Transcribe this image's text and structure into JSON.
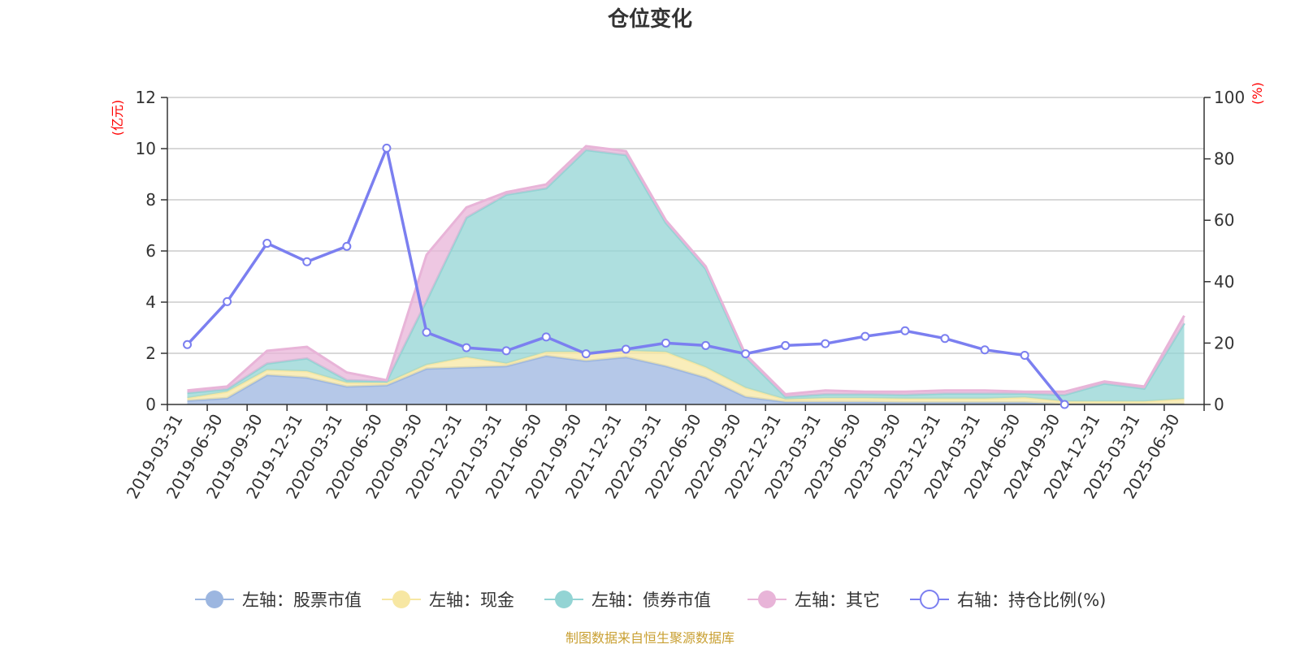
{
  "chart_data": {
    "type": "area",
    "title": "仓位变化",
    "y_left_unit": "(亿元)",
    "y_right_unit": "(%)",
    "categories": [
      "2019-03-31",
      "2019-06-30",
      "2019-09-30",
      "2019-12-31",
      "2020-03-31",
      "2020-06-30",
      "2020-09-30",
      "2020-12-31",
      "2021-03-31",
      "2021-06-30",
      "2021-09-30",
      "2021-12-31",
      "2022-03-31",
      "2022-06-30",
      "2022-09-30",
      "2022-12-31",
      "2023-03-31",
      "2023-06-30",
      "2023-09-30",
      "2023-12-31",
      "2024-03-31",
      "2024-06-30",
      "2024-09-30",
      "2024-12-31",
      "2025-03-31",
      "2025-06-30"
    ],
    "ylim_left": [
      0,
      12
    ],
    "yticks_left": [
      0,
      2,
      4,
      6,
      8,
      10,
      12
    ],
    "ylim_right": [
      0,
      100
    ],
    "yticks_right": [
      0,
      20,
      40,
      60,
      80,
      100
    ],
    "grid": true,
    "legend_position": "bottom",
    "series": [
      {
        "name": "左轴：股票市值",
        "axis": "left",
        "kind": "area",
        "color": "#9cb6e0",
        "values": [
          0.15,
          0.25,
          1.15,
          1.05,
          0.7,
          0.75,
          1.4,
          1.45,
          1.5,
          1.9,
          1.7,
          1.85,
          1.5,
          1.05,
          0.3,
          0.1,
          0.1,
          0.1,
          0.08,
          0.08,
          0.08,
          0.08,
          0.02,
          0.02,
          0.02,
          0.02
        ]
      },
      {
        "name": "左轴：现金",
        "axis": "left",
        "kind": "area",
        "color": "#f7e7a3",
        "values": [
          0.1,
          0.25,
          0.2,
          0.25,
          0.15,
          0.1,
          0.15,
          0.4,
          0.1,
          0.15,
          0.35,
          0.25,
          0.55,
          0.4,
          0.35,
          0.1,
          0.15,
          0.15,
          0.15,
          0.15,
          0.15,
          0.2,
          0.1,
          0.1,
          0.1,
          0.2
        ]
      },
      {
        "name": "左轴：债券市值",
        "axis": "left",
        "kind": "area",
        "color": "#93d4d4",
        "values": [
          0.2,
          0.1,
          0.25,
          0.5,
          0.1,
          0.05,
          2.5,
          5.45,
          6.6,
          6.4,
          7.9,
          7.65,
          5.05,
          3.85,
          1.2,
          0.1,
          0.15,
          0.15,
          0.15,
          0.2,
          0.2,
          0.15,
          0.25,
          0.7,
          0.5,
          2.95
        ]
      },
      {
        "name": "左轴：其它",
        "axis": "left",
        "kind": "area",
        "color": "#e8b4d8",
        "values": [
          0.1,
          0.1,
          0.5,
          0.45,
          0.3,
          0.05,
          1.8,
          0.4,
          0.1,
          0.15,
          0.15,
          0.15,
          0.1,
          0.1,
          0.1,
          0.1,
          0.15,
          0.1,
          0.12,
          0.12,
          0.12,
          0.07,
          0.13,
          0.08,
          0.08,
          0.3
        ]
      },
      {
        "name": "右轴：持仓比例(%)",
        "axis": "right",
        "kind": "line",
        "color": "#7b7ff0",
        "values": [
          19.5,
          33.5,
          52.5,
          46.5,
          51.5,
          83.5,
          23.5,
          18.5,
          17.5,
          22,
          16.5,
          18,
          20,
          19.2,
          16.5,
          19.2,
          19.8,
          22.2,
          24,
          21.5,
          17.8,
          16,
          0,
          null,
          null,
          null
        ]
      }
    ],
    "source_note": "制图数据来自恒生聚源数据库"
  }
}
